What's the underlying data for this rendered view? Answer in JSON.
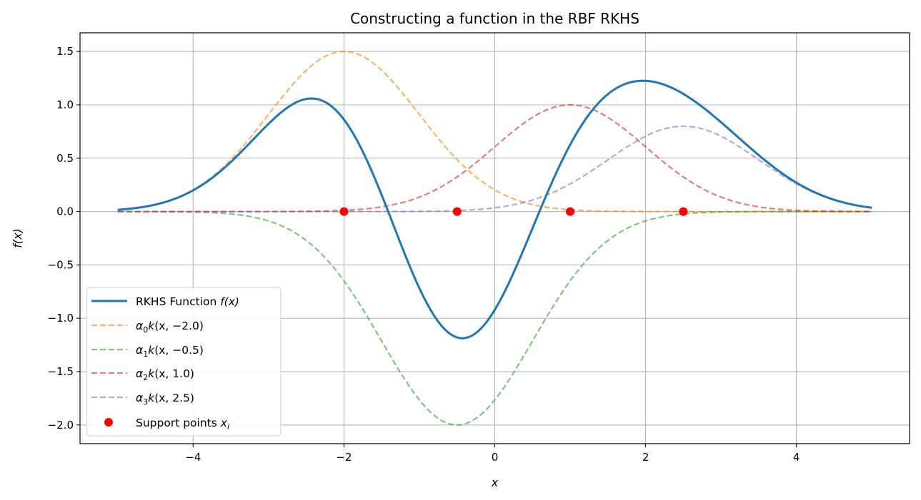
{
  "chart_data": {
    "type": "line",
    "title": "Constructing a function in the RBF RKHS",
    "xlabel": "x",
    "ylabel": "f(x)",
    "xlim": [
      -5.5,
      5.5
    ],
    "ylim": [
      -2.175,
      1.675
    ],
    "xticks": [
      -4,
      -2,
      0,
      2,
      4
    ],
    "yticks": [
      -2.0,
      -1.5,
      -1.0,
      -0.5,
      0.0,
      0.5,
      1.0,
      1.5
    ],
    "grid": true,
    "legend_position": "lower-left",
    "kernel": "rbf",
    "x_range": [
      -5,
      5
    ],
    "support_points": [
      -2.0,
      -0.5,
      1.0,
      2.5
    ],
    "alphas": [
      1.5,
      -2.0,
      1.0,
      0.8
    ],
    "series": [
      {
        "key": "f",
        "name": "RKHS Function f(x)",
        "color": "#1f77b4",
        "style": "solid"
      },
      {
        "key": "k0",
        "name": "α0 k(x, −2.0)",
        "color": "#ff7f0e",
        "style": "dashed"
      },
      {
        "key": "k1",
        "name": "α1 k(x, −0.5)",
        "color": "#2ca02c",
        "style": "dashed"
      },
      {
        "key": "k2",
        "name": "α2 k(x, 1.0)",
        "color": "#d62728",
        "style": "dashed"
      },
      {
        "key": "k3",
        "name": "α3 k(x, 2.5)",
        "color": "#9467bd",
        "style": "dashed"
      },
      {
        "key": "pts",
        "name": "Support points xi",
        "color": "#ff0000",
        "style": "marker"
      }
    ]
  },
  "legend": {
    "f_prefix": "RKHS Function ",
    "f_var": "f(x)",
    "k0_arg": "(x, −2.0)",
    "k1_arg": "(x, −0.5)",
    "k2_arg": "(x, 1.0)",
    "k3_arg": "(x, 2.5)",
    "pts_prefix": "Support points ",
    "pts_var": "x",
    "pts_sub": "i"
  }
}
